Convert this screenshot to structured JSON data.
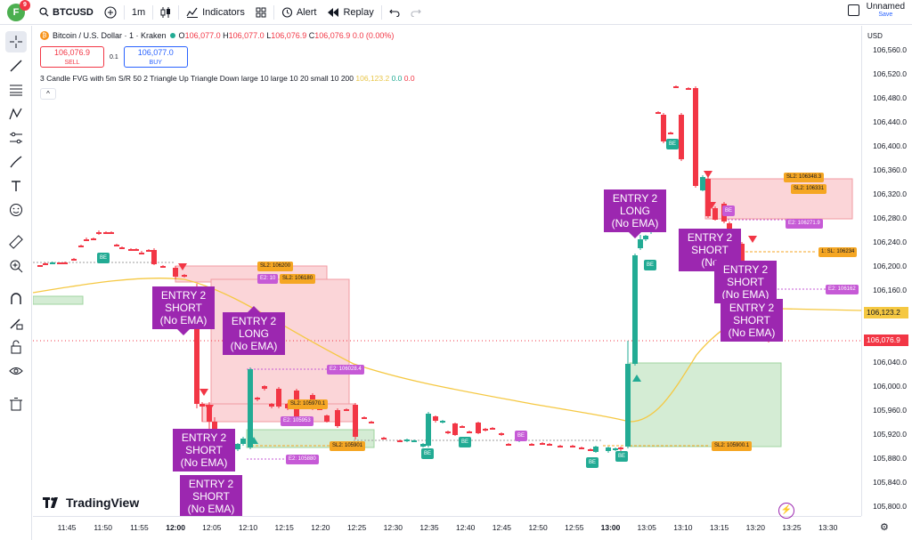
{
  "topbar": {
    "avatar_letter": "F",
    "avatar_badge": "9",
    "symbol": "BTCUSD",
    "timeframe": "1m",
    "indicators": "Indicators",
    "alert": "Alert",
    "replay": "Replay",
    "layout_name": "Unnamed",
    "save": "Save"
  },
  "legend": {
    "title": "Bitcoin / U.S. Dollar · 1 · Kraken",
    "o_label": "O",
    "o": "106,077.0",
    "h_label": "H",
    "h": "106,077.0",
    "l_label": "L",
    "l": "106,076.9",
    "c_label": "C",
    "c": "106,076.9",
    "chg": "0.0 (0.00%)",
    "sell_price": "106,076.9",
    "sell_label": "SELL",
    "spread": "0.1",
    "buy_price": "106,077.0",
    "buy_label": "BUY",
    "indicator": "3 Candle FVG with 5m S/R 50 2 Triangle Up Triangle Down large 10 large 10 20 small 10 200",
    "ind_v1": "106,123.2",
    "ind_v2": "0.0",
    "ind_v3": "0.0"
  },
  "price_axis": {
    "currency": "USD",
    "labels": [
      "106,560.0",
      "106,520.0",
      "106,480.0",
      "106,440.0",
      "106,400.0",
      "106,360.0",
      "106,320.0",
      "106,280.0",
      "106,240.0",
      "106,200.0",
      "106,160.0",
      "106,120.0",
      "106,080.0",
      "106,040.0",
      "106,000.0",
      "105,960.0",
      "105,920.0",
      "105,880.0",
      "105,840.0",
      "105,800.0"
    ],
    "ema_tag": "106,123.2",
    "last_tag": "106,076.9"
  },
  "time_axis": {
    "labels": [
      "11:45",
      "11:50",
      "11:55",
      "12:00",
      "12:05",
      "12:10",
      "12:15",
      "12:20",
      "12:25",
      "12:30",
      "12:35",
      "12:40",
      "12:45",
      "12:50",
      "12:55",
      "13:00",
      "13:05",
      "13:10",
      "13:15",
      "13:20",
      "13:25",
      "13:30"
    ],
    "bold": [
      "12:00",
      "13:00"
    ]
  },
  "brand": "TradingView",
  "entry_labels": [
    {
      "line1": "ENTRY 2",
      "line2": "SHORT",
      "line3": "(No EMA)"
    },
    {
      "line1": "ENTRY 2",
      "line2": "LONG",
      "line3": "(No EMA)"
    },
    {
      "line1": "ENTRY 2",
      "line2": "SHORT",
      "line3": "(No EMA)"
    },
    {
      "line1": "ENTRY 2",
      "line2": "SHORT",
      "line3": "(No EMA)"
    },
    {
      "line1": "ENTRY 2",
      "line2": "LONG",
      "line3": "(No EMA)"
    },
    {
      "line1": "ENTRY 2",
      "line2": "SHORT",
      "line3": "(No"
    },
    {
      "line1": "ENTRY 2",
      "line2": "SHORT",
      "line3": "(No EMA)"
    },
    {
      "line1": "ENTRY 2",
      "line2": "SHORT",
      "line3": "(No EMA)"
    }
  ],
  "level_tags": {
    "sl_106200": "SL2: 106200",
    "e2_106": "E2: 10",
    "sl_106180": "SL2: 106180",
    "e2_106028": "E2: 106028.4",
    "sl_105970": "SL2: 105970.1",
    "e2_105953": "E2: 105953",
    "e2_105880": "E2: 105880",
    "sl_105901": "SL2: 105901",
    "sl_105900": "SL2: 105900.1",
    "sl_106348": "SL2: 106348.3",
    "sl_106331": "SL2: 106331",
    "e2_106271": "E2: 106271.9",
    "tp_106234": "1: SL: 106234",
    "e2_106162": "E2: 106162"
  },
  "be_label": "BE",
  "colors": {
    "bull": "#22ab94",
    "bear": "#f23645",
    "ema": "#f5c842",
    "entry": "#9c27b0",
    "sl_tag": "#f5a623"
  }
}
